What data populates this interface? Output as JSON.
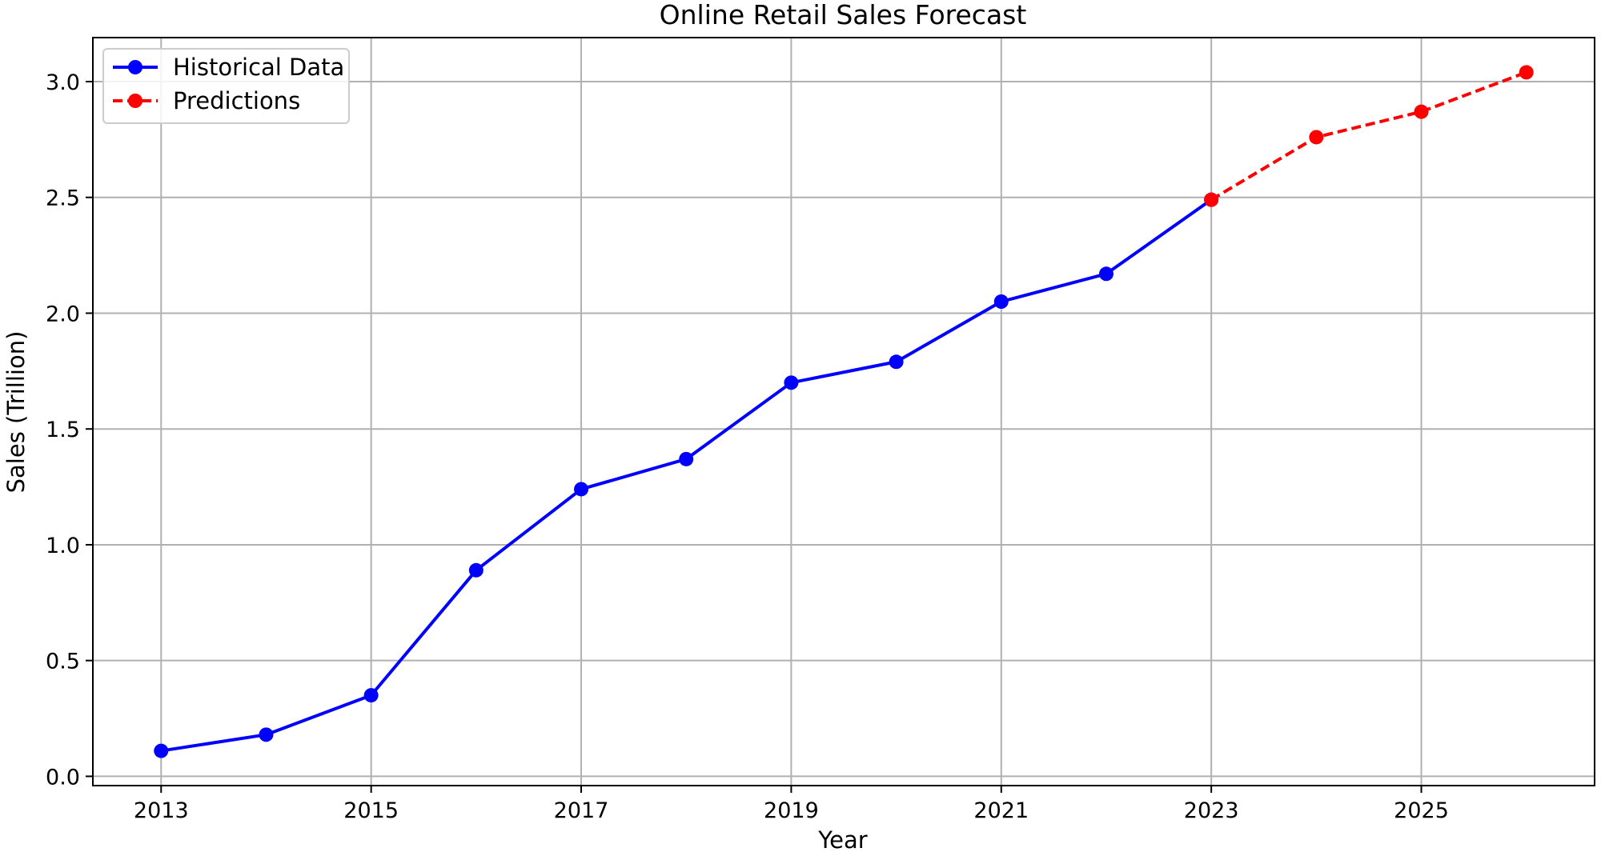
{
  "chart_data": {
    "type": "line",
    "title": "Online Retail Sales Forecast",
    "xlabel": "Year",
    "ylabel": "Sales (Trillion)",
    "xlim": [
      2012.35,
      2026.65
    ],
    "ylim": [
      -0.04,
      3.19
    ],
    "x_ticks": [
      "2013",
      "2015",
      "2017",
      "2019",
      "2021",
      "2023",
      "2025"
    ],
    "y_ticks": [
      "0.0",
      "0.5",
      "1.0",
      "1.5",
      "2.0",
      "2.5",
      "3.0"
    ],
    "grid": true,
    "legend_position": "top-left",
    "series": [
      {
        "name": "Historical Data",
        "color": "#0000ff",
        "line_style": "solid",
        "marker": "circle",
        "x": [
          2013,
          2014,
          2015,
          2016,
          2017,
          2018,
          2019,
          2020,
          2021,
          2022,
          2023
        ],
        "y": [
          0.11,
          0.18,
          0.35,
          0.89,
          1.24,
          1.37,
          1.7,
          1.79,
          2.05,
          2.17,
          2.49
        ]
      },
      {
        "name": "Predictions",
        "color": "#ff0000",
        "line_style": "dashed",
        "marker": "circle",
        "x": [
          2023,
          2024,
          2025,
          2026
        ],
        "y": [
          2.49,
          2.76,
          2.87,
          3.04
        ]
      }
    ]
  }
}
